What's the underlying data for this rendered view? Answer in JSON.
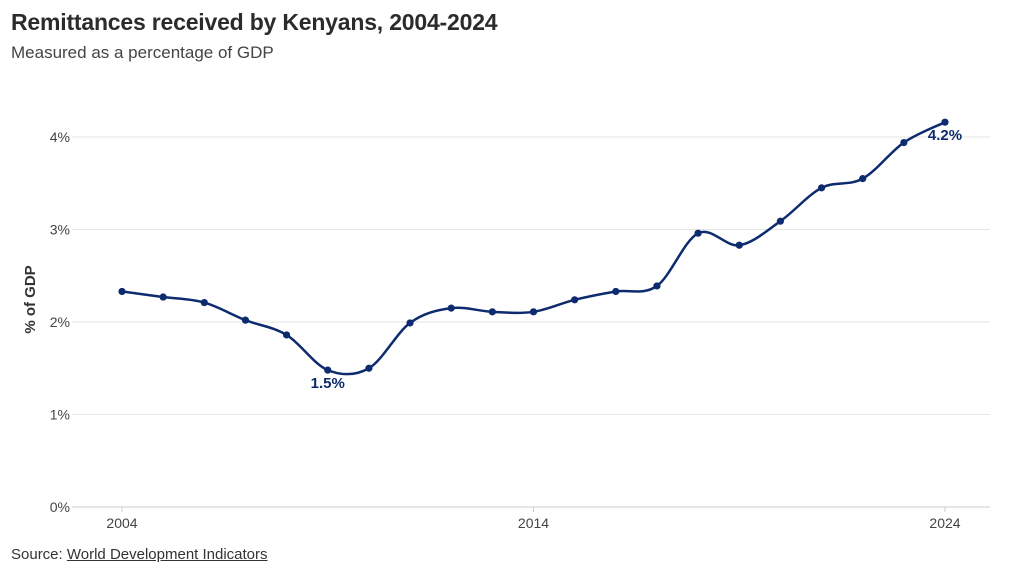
{
  "header": {
    "title": "Remittances received by Kenyans, 2004-2024",
    "subtitle": "Measured as a percentage of GDP"
  },
  "footer": {
    "source_prefix": "Source: ",
    "source_link": "World Development Indicators"
  },
  "colors": {
    "series": "#0d2b6e",
    "grid": "#e6e6e6",
    "axis": "#cccccc"
  },
  "chart_data": {
    "type": "line",
    "title": "Remittances received by Kenyans, 2004-2024",
    "subtitle": "Measured as a percentage of GDP",
    "xlabel": "",
    "ylabel": "% of GDP",
    "x": [
      2004,
      2005,
      2006,
      2007,
      2008,
      2009,
      2010,
      2011,
      2012,
      2013,
      2014,
      2015,
      2016,
      2017,
      2018,
      2019,
      2020,
      2021,
      2022,
      2023,
      2024
    ],
    "series": [
      {
        "values": [
          2.33,
          2.27,
          2.21,
          2.02,
          1.86,
          1.48,
          1.5,
          1.99,
          2.15,
          2.11,
          2.11,
          2.24,
          2.33,
          2.39,
          2.96,
          2.83,
          3.09,
          3.45,
          3.55,
          3.94,
          4.16
        ]
      }
    ],
    "xlim": [
      2004,
      2024
    ],
    "ylim": [
      0,
      4
    ],
    "x_ticks": [
      2004,
      2014,
      2024
    ],
    "x_tick_labels": [
      "2004",
      "2014",
      "2024"
    ],
    "y_ticks": [
      0,
      1,
      2,
      3,
      4
    ],
    "y_tick_labels": [
      "0%",
      "1%",
      "2%",
      "3%",
      "4%"
    ],
    "grid": true,
    "annotations": [
      {
        "x": 2009,
        "y": 1.48,
        "text": "1.5%"
      },
      {
        "x": 2024,
        "y": 4.16,
        "text": "4.2%"
      }
    ]
  }
}
